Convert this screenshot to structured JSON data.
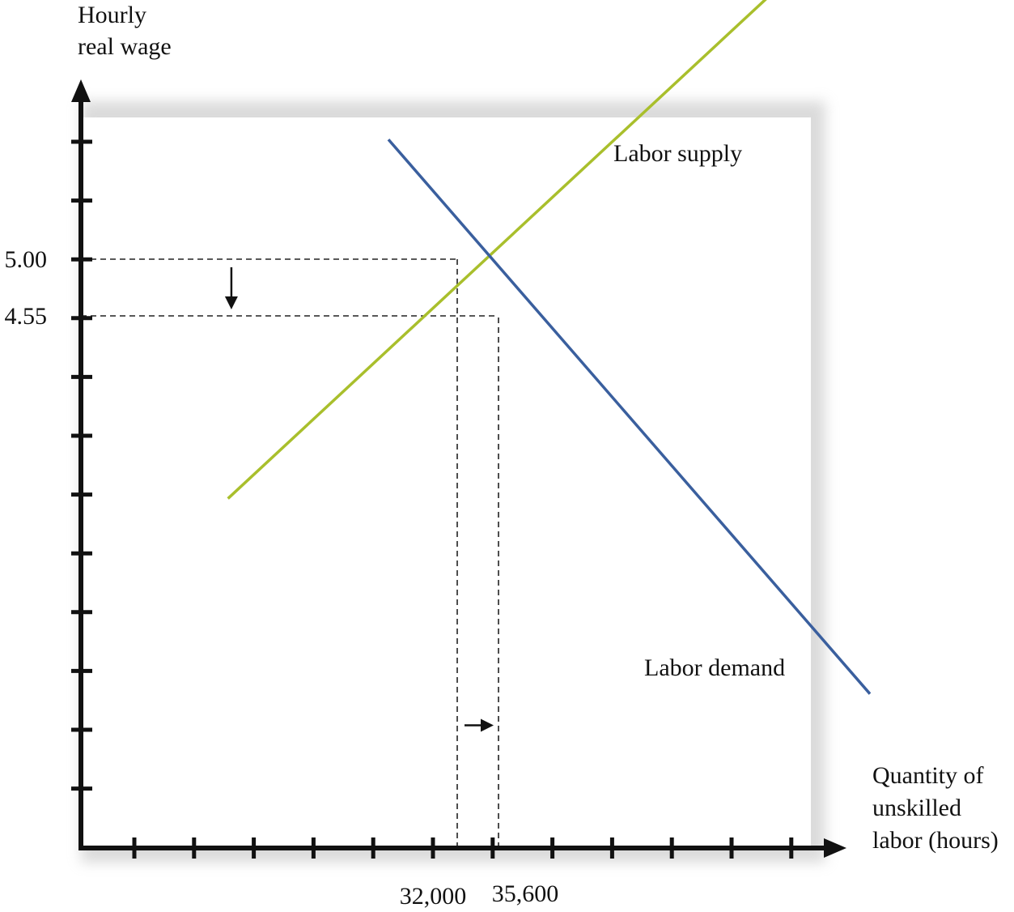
{
  "chart_data": {
    "type": "line",
    "ylabel": [
      "Hourly",
      "real wage"
    ],
    "xlabel": [
      "Quantity of",
      "unskilled",
      "labor (hours)"
    ],
    "x_tick_labels": [
      {
        "x": 32000,
        "text": "32,000"
      },
      {
        "x": 35600,
        "text": "35,600"
      }
    ],
    "y_tick_labels": [
      {
        "y": 5.0,
        "text": "5.00"
      },
      {
        "y": 4.55,
        "text": "4.55"
      }
    ],
    "series": [
      {
        "name": "Labor supply",
        "color": "#a9bf2c",
        "points": [
          [
            12000,
            3.1
          ],
          [
            70000,
            8.0
          ]
        ]
      },
      {
        "name": "Labor demand",
        "color": "#3a5f9e",
        "points": [
          [
            26000,
            5.95
          ],
          [
            68000,
            1.55
          ]
        ]
      }
    ],
    "reference_lines": [
      {
        "kind": "horizontal",
        "y": 5.0,
        "x_to": 32000
      },
      {
        "kind": "horizontal",
        "y": 4.55,
        "x_to": 35600
      },
      {
        "kind": "vertical",
        "x": 32000,
        "y_to": 5.0
      },
      {
        "kind": "vertical",
        "x": 35600,
        "y_to": 4.55
      }
    ],
    "annotations": [
      {
        "kind": "arrow-down",
        "from_y": 5.0,
        "to_y": 4.55,
        "x": 12300
      },
      {
        "kind": "arrow-right",
        "from_x": 32000,
        "to_x": 35600,
        "y": 1.3
      }
    ],
    "colors": {
      "axis": "#111111",
      "panel": "#ffffff",
      "background": "#e6e6e6",
      "guides": "#222222"
    }
  }
}
